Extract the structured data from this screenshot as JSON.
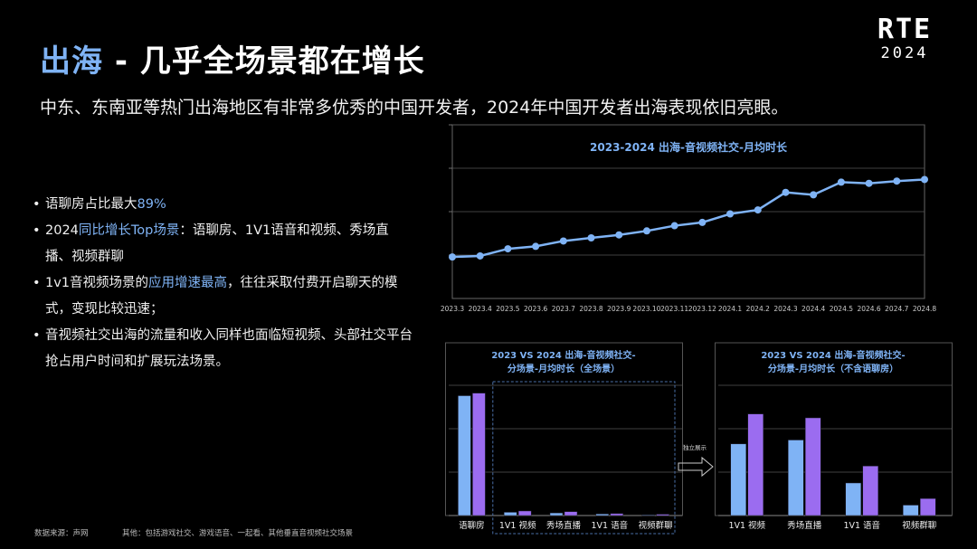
{
  "header": {
    "title_highlight": "出海",
    "title_rest": " - 几乎全场景都在增长",
    "subtitle": "中东、东南亚等热门出海地区有非常多优秀的中国开发者，2024年中国开发者出海表现依旧亮眼。"
  },
  "logo": {
    "line1": "RTE",
    "line2": "2024"
  },
  "bullets": [
    {
      "parts": [
        {
          "t": "语聊房占比最大",
          "h": false
        },
        {
          "t": "89%",
          "h": true
        }
      ]
    },
    {
      "parts": [
        {
          "t": "2024",
          "h": false
        },
        {
          "t": "同比增长Top场景",
          "h": true
        },
        {
          "t": "：语聊房、1V1语音和视频、秀场直播、视频群聊",
          "h": false
        }
      ]
    },
    {
      "parts": [
        {
          "t": "1v1音视频场景的",
          "h": false
        },
        {
          "t": "应用增速最高",
          "h": true
        },
        {
          "t": "，往往采取付费开启聊天的模式，变现比较迅速；",
          "h": false
        }
      ]
    },
    {
      "parts": [
        {
          "t": "音视频社交出海的流量和收入同样也面临短视频、头部社交平台抢占用户时间和扩展玩法场景。",
          "h": false
        }
      ]
    }
  ],
  "colors": {
    "accent": "#7fb3f5",
    "series2023": "#7fb3f5",
    "series2024": "#9b6cf0",
    "grid": "#555555",
    "line": "#7fb3f5"
  },
  "chart_data": [
    {
      "type": "line",
      "title": "2023-2024 出海-音视频社交-月均时长",
      "x": [
        "2023.3",
        "2023.4",
        "2023.5",
        "2023.6",
        "2023.7",
        "2023.8",
        "2023.9",
        "2023.10",
        "2023.11",
        "2023.12",
        "2024.1",
        "2024.2",
        "2024.3",
        "2024.4",
        "2024.5",
        "2024.6",
        "2024.7",
        "2024.8"
      ],
      "series": [
        {
          "values": [
            23.9,
            24.5,
            28.6,
            30.0,
            33.1,
            34.9,
            36.6,
            38.9,
            41.9,
            43.8,
            48.7,
            51.0,
            61.1,
            59.7,
            67.0,
            66.3,
            67.6,
            68.5
          ]
        }
      ],
      "ylim": [
        0,
        100
      ],
      "grid": true,
      "ytick_labels": false
    },
    {
      "type": "bar",
      "title": "2023 VS 2024 出海-音视频社交-\n分场景-月均时长（全场景）",
      "categories": [
        "语聊房",
        "1V1 视频",
        "秀场直播",
        "1V1 语音",
        "视频群聊"
      ],
      "series": [
        {
          "name": "2023",
          "values": [
            92,
            2.5,
            2.0,
            1.2,
            0.5
          ]
        },
        {
          "name": "2024",
          "values": [
            94,
            3.5,
            3.0,
            1.5,
            1.0
          ]
        }
      ],
      "ylim": [
        0,
        100
      ],
      "grid": true,
      "highlight_box": {
        "label": "独立展示",
        "categories": [
          "1V1 视频",
          "秀场直播",
          "1V1 语音",
          "视频群聊"
        ]
      }
    },
    {
      "type": "bar",
      "title": "2023 VS 2024 出海-音视频社交-\n分场景-月均时长（不含语聊房）",
      "categories": [
        "1V1 视频",
        "秀场直播",
        "1V1 语音",
        "视频群聊"
      ],
      "series": [
        {
          "name": "2023",
          "values": [
            55,
            58,
            25,
            8
          ]
        },
        {
          "name": "2024",
          "values": [
            78,
            75,
            38,
            13
          ]
        }
      ],
      "ylim": [
        0,
        100
      ],
      "grid": true
    }
  ],
  "footer": {
    "source": "数据来源：声网",
    "note": "其他：包括游戏社交、游戏语音、一起看、其他垂直音视频社交场景"
  }
}
